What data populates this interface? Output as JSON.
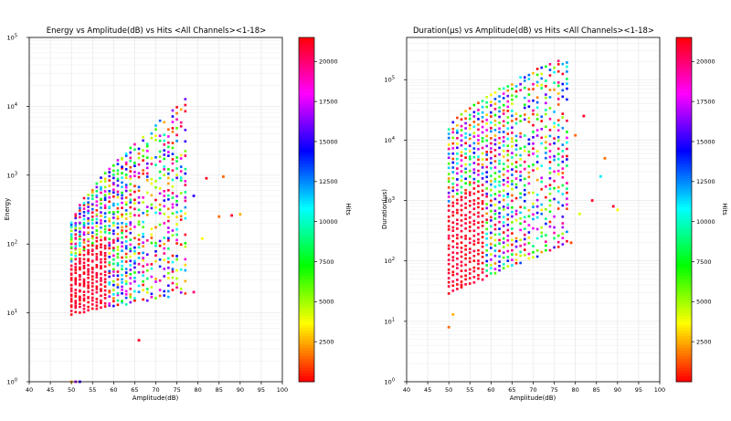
{
  "chart_data": [
    {
      "type": "scatter",
      "title": "Energy vs Amplitude(dB) vs Hits <All Channels><1-18>",
      "xlabel": "Amplitude(dB)",
      "ylabel": "Energy",
      "yscale": "log",
      "xlim": [
        40,
        100
      ],
      "ylim": [
        1,
        100000
      ],
      "xticks": [
        "40",
        "45",
        "50",
        "55",
        "60",
        "65",
        "70",
        "75",
        "80",
        "85",
        "90",
        "95",
        "100"
      ],
      "yticks": [
        "10^0",
        "10^1",
        "10^2",
        "10^3",
        "10^4",
        "10^5"
      ],
      "grid": true,
      "colorbar": {
        "label": "Hits",
        "ticks": [
          "2500",
          "5000",
          "7500",
          "10000",
          "12500",
          "15000",
          "17500",
          "20000"
        ],
        "range": [
          1,
          21500
        ],
        "colormap": "hsv"
      },
      "band": {
        "xmin": 50,
        "xmax": 77,
        "ylow": [
          10,
          20
        ],
        "yhigh_start": 200,
        "yhigh_end": 12000
      },
      "outliers": [
        {
          "x": 50,
          "y": 1,
          "hits": 2500
        },
        {
          "x": 51,
          "y": 1,
          "hits": 17000
        },
        {
          "x": 52,
          "y": 1,
          "hits": 15000
        },
        {
          "x": 66,
          "y": 4,
          "hits": 21000
        },
        {
          "x": 79,
          "y": 20,
          "hits": 20000
        },
        {
          "x": 82,
          "y": 900,
          "hits": 21000
        },
        {
          "x": 86,
          "y": 950,
          "hits": 1500
        },
        {
          "x": 90,
          "y": 270,
          "hits": 2500
        },
        {
          "x": 85,
          "y": 250,
          "hits": 1500
        },
        {
          "x": 88,
          "y": 260,
          "hits": 21000
        },
        {
          "x": 81,
          "y": 120,
          "hits": 3500
        },
        {
          "x": 79,
          "y": 500,
          "hits": 15000
        }
      ]
    },
    {
      "type": "scatter",
      "title": "Duration(μs) vs Amplitude(dB) vs Hits <All Channels><1-18>",
      "xlabel": "Amplitude(dB)",
      "ylabel": "Duration(μs)",
      "yscale": "log",
      "xlim": [
        40,
        100
      ],
      "ylim": [
        1,
        500000
      ],
      "xticks": [
        "40",
        "45",
        "50",
        "55",
        "60",
        "65",
        "70",
        "75",
        "80",
        "85",
        "90",
        "95",
        "100"
      ],
      "yticks": [
        "10^0",
        "10^1",
        "10^2",
        "10^3",
        "10^4",
        "10^5"
      ],
      "grid": true,
      "colorbar": {
        "label": "Hits",
        "ticks": [
          "2500",
          "5000",
          "7500",
          "10000",
          "12500",
          "15000",
          "17500",
          "20000"
        ],
        "range": [
          1,
          21500
        ],
        "colormap": "hsv"
      },
      "band": {
        "xmin": 50,
        "xmax": 78,
        "ylow": [
          30,
          200
        ],
        "yhigh_start": 15000,
        "yhigh_end": 250000
      },
      "outliers": [
        {
          "x": 50,
          "y": 8,
          "hits": 1500
        },
        {
          "x": 51,
          "y": 13,
          "hits": 2500
        },
        {
          "x": 53,
          "y": 40,
          "hits": 21000
        },
        {
          "x": 79,
          "y": 200,
          "hits": 1000
        },
        {
          "x": 82,
          "y": 25000,
          "hits": 21000
        },
        {
          "x": 87,
          "y": 5000,
          "hits": 1500
        },
        {
          "x": 86,
          "y": 2500,
          "hits": 11000
        },
        {
          "x": 89,
          "y": 800,
          "hits": 21000
        },
        {
          "x": 90,
          "y": 700,
          "hits": 3500
        },
        {
          "x": 81,
          "y": 600,
          "hits": 4000
        },
        {
          "x": 84,
          "y": 1000,
          "hits": 21000
        },
        {
          "x": 80,
          "y": 12000,
          "hits": 1500
        }
      ]
    }
  ]
}
